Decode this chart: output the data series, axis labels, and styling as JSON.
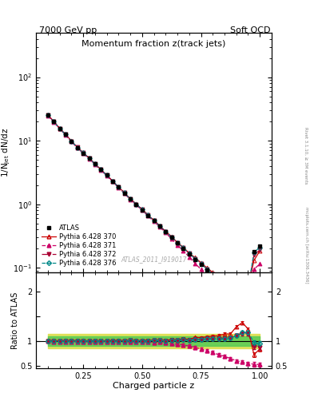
{
  "title_left": "7000 GeV pp",
  "title_right": "Soft QCD",
  "plot_title": "Momentum fraction z(track jets)",
  "xlabel": "Charged particle z",
  "ylabel_main": "1/N$_\\mathregular{jet}$ dN/dz",
  "ylabel_ratio": "Ratio to ATLAS",
  "watermark": "ATLAS_2011_I919017",
  "rivet_label": "Rivet 3.1.10, ≥ 3M events",
  "arxiv_label": "mcplots.cern.ch [arXiv:1306.3436]",
  "z_values": [
    0.1,
    0.125,
    0.15,
    0.175,
    0.2,
    0.225,
    0.25,
    0.275,
    0.3,
    0.325,
    0.35,
    0.375,
    0.4,
    0.425,
    0.45,
    0.475,
    0.5,
    0.525,
    0.55,
    0.575,
    0.6,
    0.625,
    0.65,
    0.675,
    0.7,
    0.725,
    0.75,
    0.775,
    0.8,
    0.825,
    0.85,
    0.875,
    0.9,
    0.925,
    0.95,
    0.975,
    1.0
  ],
  "atlas_values": [
    25.0,
    20.0,
    15.5,
    12.5,
    9.8,
    7.8,
    6.4,
    5.3,
    4.3,
    3.5,
    2.85,
    2.3,
    1.85,
    1.5,
    1.2,
    1.0,
    0.82,
    0.67,
    0.55,
    0.45,
    0.37,
    0.3,
    0.245,
    0.2,
    0.165,
    0.135,
    0.112,
    0.092,
    0.077,
    0.065,
    0.055,
    0.048,
    0.045,
    0.04,
    0.04,
    0.18,
    0.22
  ],
  "atlas_errors": [
    0.5,
    0.4,
    0.35,
    0.3,
    0.25,
    0.2,
    0.18,
    0.15,
    0.12,
    0.1,
    0.08,
    0.065,
    0.05,
    0.04,
    0.035,
    0.028,
    0.022,
    0.018,
    0.015,
    0.012,
    0.01,
    0.009,
    0.007,
    0.006,
    0.005,
    0.004,
    0.0035,
    0.003,
    0.0025,
    0.002,
    0.0018,
    0.0015,
    0.0014,
    0.0013,
    0.0013,
    0.008,
    0.01
  ],
  "py370_values": [
    25.2,
    20.2,
    15.6,
    12.6,
    9.9,
    7.9,
    6.45,
    5.35,
    4.32,
    3.52,
    2.87,
    2.32,
    1.87,
    1.52,
    1.22,
    1.01,
    0.83,
    0.68,
    0.56,
    0.46,
    0.375,
    0.31,
    0.25,
    0.21,
    0.17,
    0.145,
    0.12,
    0.1,
    0.085,
    0.072,
    0.063,
    0.055,
    0.058,
    0.055,
    0.05,
    0.13,
    0.185
  ],
  "py371_values": [
    24.8,
    19.8,
    15.3,
    12.3,
    9.65,
    7.7,
    6.3,
    5.22,
    4.22,
    3.44,
    2.8,
    2.27,
    1.82,
    1.47,
    1.18,
    0.98,
    0.8,
    0.655,
    0.535,
    0.44,
    0.355,
    0.285,
    0.228,
    0.185,
    0.148,
    0.118,
    0.094,
    0.074,
    0.059,
    0.047,
    0.038,
    0.031,
    0.027,
    0.023,
    0.022,
    0.095,
    0.115
  ],
  "py372_values": [
    25.1,
    20.1,
    15.55,
    12.55,
    9.85,
    7.85,
    6.42,
    5.32,
    4.3,
    3.5,
    2.86,
    2.31,
    1.86,
    1.51,
    1.21,
    1.005,
    0.825,
    0.675,
    0.555,
    0.455,
    0.37,
    0.305,
    0.248,
    0.205,
    0.168,
    0.14,
    0.116,
    0.096,
    0.081,
    0.068,
    0.058,
    0.051,
    0.05,
    0.046,
    0.046,
    0.16,
    0.19
  ],
  "py376_values": [
    25.0,
    20.0,
    15.5,
    12.5,
    9.82,
    7.82,
    6.42,
    5.32,
    4.3,
    3.5,
    2.86,
    2.31,
    1.86,
    1.51,
    1.21,
    1.005,
    0.825,
    0.675,
    0.555,
    0.455,
    0.37,
    0.305,
    0.248,
    0.205,
    0.168,
    0.14,
    0.116,
    0.096,
    0.081,
    0.068,
    0.058,
    0.051,
    0.05,
    0.047,
    0.047,
    0.175,
    0.21
  ],
  "atlas_color": "#000000",
  "py370_color": "#cc0000",
  "py371_color": "#cc0066",
  "py372_color": "#aa0033",
  "py376_color": "#008888",
  "band_green": "#55cc55",
  "band_yellow": "#dddd44",
  "ylim_main": [
    0.085,
    500
  ],
  "ylim_ratio": [
    0.45,
    2.4
  ],
  "xlim": [
    0.05,
    1.05
  ],
  "ratio_yticks": [
    0.5,
    1.0,
    1.5,
    2.0
  ],
  "ratio_yticklabels": [
    "0.5",
    "1",
    "",
    "2"
  ]
}
